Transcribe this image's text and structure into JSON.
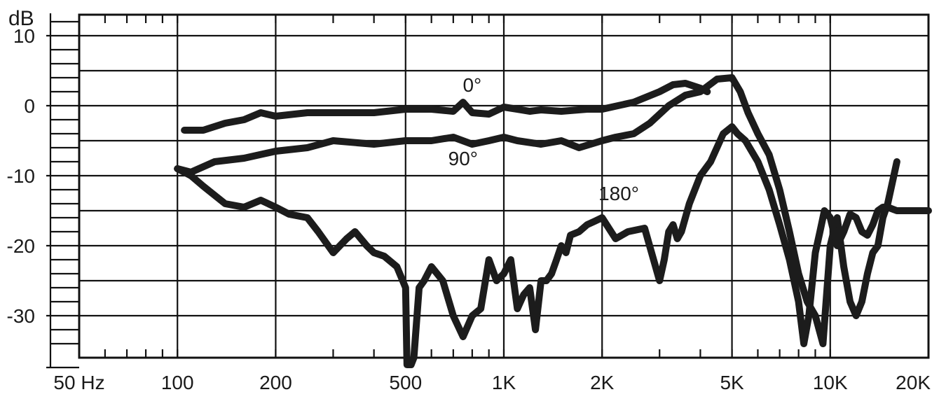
{
  "chart_data": {
    "type": "line",
    "xscale": "log",
    "xlim": [
      50,
      20000
    ],
    "ylim": [
      -36,
      13
    ],
    "grid": true,
    "ylabel": "dB",
    "x_ticks": [
      {
        "value": 50,
        "label": "50 Hz"
      },
      {
        "value": 100,
        "label": "100"
      },
      {
        "value": 200,
        "label": "200"
      },
      {
        "value": 500,
        "label": "500"
      },
      {
        "value": 1000,
        "label": "1K"
      },
      {
        "value": 2000,
        "label": "2K"
      },
      {
        "value": 5000,
        "label": "5K"
      },
      {
        "value": 10000,
        "label": "10K"
      },
      {
        "value": 20000,
        "label": "20K"
      }
    ],
    "y_ticks": [
      {
        "value": 10,
        "label": "10"
      },
      {
        "value": 0,
        "label": "0"
      },
      {
        "value": -10,
        "label": "-10"
      },
      {
        "value": -20,
        "label": "-20"
      },
      {
        "value": -30,
        "label": "-30"
      }
    ],
    "y_gridlines": [
      10,
      5,
      0,
      -5,
      -10,
      -15,
      -20,
      -25,
      -30
    ],
    "series": [
      {
        "name": "0°",
        "label_at": {
          "x": 800,
          "y": 2
        },
        "x": [
          105,
          120,
          140,
          160,
          180,
          200,
          250,
          300,
          400,
          500,
          600,
          700,
          750,
          800,
          900,
          1000,
          1100,
          1200,
          1300,
          1500,
          1800,
          2000,
          2500,
          3000,
          3300,
          3600,
          4000,
          4200
        ],
        "y": [
          -3.5,
          -3.5,
          -2.5,
          -2,
          -1,
          -1.5,
          -1,
          -1,
          -1,
          -0.5,
          -0.5,
          -0.8,
          0.5,
          -1,
          -1.2,
          -0.2,
          -0.5,
          -0.8,
          -0.6,
          -0.8,
          -0.5,
          -0.5,
          0.5,
          2,
          3,
          3.2,
          2.5,
          2
        ]
      },
      {
        "name": "90°",
        "label_at": {
          "x": 750,
          "y": -8.5
        },
        "x": [
          100,
          110,
          130,
          160,
          200,
          250,
          300,
          400,
          500,
          600,
          700,
          800,
          900,
          1000,
          1100,
          1300,
          1500,
          1700,
          2000,
          2200,
          2500,
          2800,
          3200,
          3600,
          4000,
          4500,
          5000,
          5300,
          5600,
          6000,
          6500,
          7000,
          7500,
          8000,
          8500,
          9000,
          9500,
          10000,
          10500,
          11000,
          11500,
          12000,
          12500,
          13000,
          13500,
          14000,
          14500,
          15000,
          16000
        ],
        "y": [
          -9,
          -9.5,
          -8,
          -7.5,
          -6.5,
          -6,
          -5,
          -5.5,
          -5,
          -5,
          -4.5,
          -5.5,
          -5,
          -4.5,
          -5,
          -5.5,
          -5,
          -6,
          -5,
          -4.5,
          -4,
          -2.5,
          0,
          1.5,
          2,
          3.8,
          4,
          2,
          -1,
          -4,
          -7,
          -12,
          -18,
          -24,
          -28,
          -30,
          -34,
          -20,
          -16,
          -23,
          -28,
          -30,
          -28,
          -24,
          -21,
          -20,
          -16,
          -14,
          -8
        ]
      },
      {
        "name": "180°",
        "label_at": {
          "x": 2250,
          "y": -13.5
        },
        "x": [
          100,
          110,
          120,
          140,
          160,
          180,
          200,
          220,
          250,
          270,
          300,
          330,
          350,
          380,
          400,
          430,
          470,
          500,
          505,
          520,
          530,
          550,
          570,
          600,
          650,
          700,
          750,
          800,
          850,
          900,
          950,
          1000,
          1050,
          1100,
          1150,
          1200,
          1250,
          1300,
          1350,
          1400,
          1450,
          1500,
          1550,
          1600,
          1700,
          1800,
          1900,
          2000,
          2200,
          2400,
          2700,
          3000,
          3100,
          3200,
          3300,
          3400,
          3500,
          3700,
          4000,
          4300,
          4700,
          5000,
          5200,
          5500,
          6000,
          6500,
          7000,
          7500,
          8000,
          8300,
          8600,
          9000,
          9300,
          9600,
          10000,
          10500,
          11000,
          11500,
          12000,
          12500,
          13000,
          13500,
          14000,
          14500,
          15000,
          16000,
          17500,
          20000
        ],
        "y": [
          -9,
          -10,
          -11.5,
          -14,
          -14.5,
          -13.5,
          -14.5,
          -15.5,
          -16,
          -18,
          -21,
          -19,
          -18,
          -20,
          -21,
          -21.5,
          -23,
          -26,
          -37,
          -37,
          -36,
          -26,
          -25,
          -23,
          -25,
          -30,
          -33,
          -30,
          -29,
          -22,
          -25,
          -24,
          -22,
          -29,
          -27,
          -26,
          -32,
          -25,
          -25,
          -24,
          -22,
          -20,
          -21,
          -18.5,
          -18,
          -17,
          -16.5,
          -16,
          -19,
          -18,
          -17.5,
          -25,
          -22,
          -18,
          -17,
          -19,
          -18,
          -14,
          -10,
          -8,
          -4,
          -3,
          -4,
          -5,
          -8,
          -12,
          -17,
          -22,
          -28,
          -34,
          -30,
          -21,
          -18,
          -15,
          -16,
          -20,
          -18,
          -15.5,
          -16,
          -18,
          -18.5,
          -17,
          -15,
          -14.5,
          -14.5,
          -15,
          -15,
          -15
        ]
      }
    ]
  }
}
